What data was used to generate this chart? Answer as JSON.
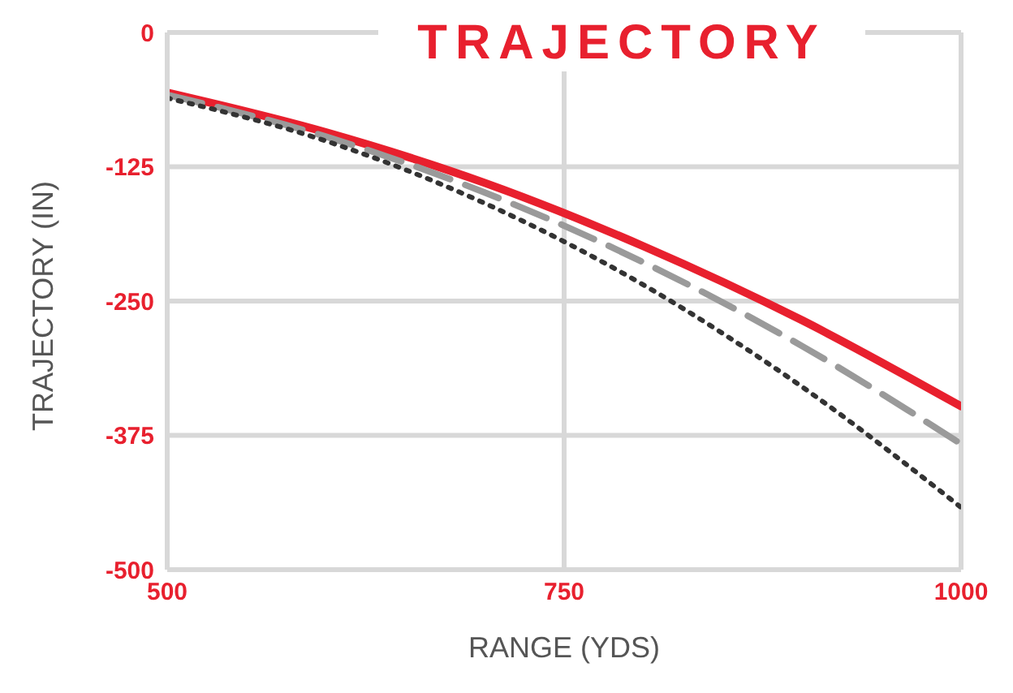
{
  "chart_data": {
    "type": "line",
    "title": "TRAJECTORY",
    "xlabel": "RANGE (YDS)",
    "ylabel": "TRAJECTORY (IN)",
    "x": [
      500,
      600,
      700,
      800,
      900,
      1000
    ],
    "series": [
      {
        "color": "#e8202e",
        "line_style": "solid",
        "values": [
          -56,
          -93,
          -140,
          -199,
          -268,
          -348
        ]
      },
      {
        "color": "#9a9a9a",
        "line_style": "dashed",
        "values": [
          -58,
          -97,
          -149,
          -214,
          -292,
          -383
        ]
      },
      {
        "color": "#333333",
        "line_style": "dotted",
        "values": [
          -61,
          -101,
          -159,
          -235,
          -330,
          -442
        ]
      }
    ],
    "xlim": [
      500,
      1000
    ],
    "xticks": [
      500,
      750,
      1000
    ],
    "ylim": [
      -500,
      0
    ],
    "yticks": [
      -500,
      -375,
      -250,
      -125,
      0
    ],
    "grid": true,
    "legend": false,
    "marker": "none"
  }
}
